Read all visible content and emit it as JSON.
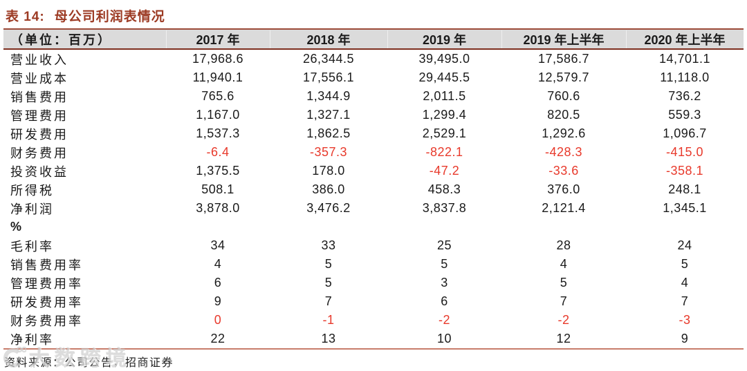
{
  "title": {
    "tag": "表 14:",
    "text": "母公司利润表情况"
  },
  "table": {
    "unit_header": "（单位：百万）",
    "columns": [
      "2017 年",
      "2018 年",
      "2019 年",
      "2019 年上半年",
      "2020 年上半年"
    ],
    "rows": [
      {
        "label": "营业收入",
        "values": [
          "17,968.6",
          "26,344.5",
          "39,495.0",
          "17,586.7",
          "14,701.1"
        ],
        "red": [
          false,
          false,
          false,
          false,
          false
        ]
      },
      {
        "label": "营业成本",
        "values": [
          "11,940.1",
          "17,556.1",
          "29,445.5",
          "12,579.7",
          "11,118.0"
        ],
        "red": [
          false,
          false,
          false,
          false,
          false
        ]
      },
      {
        "label": "销售费用",
        "values": [
          "765.6",
          "1,344.9",
          "2,011.5",
          "760.6",
          "736.2"
        ],
        "red": [
          false,
          false,
          false,
          false,
          false
        ]
      },
      {
        "label": "管理费用",
        "values": [
          "1,167.0",
          "1,327.1",
          "1,299.4",
          "820.5",
          "559.3"
        ],
        "red": [
          false,
          false,
          false,
          false,
          false
        ]
      },
      {
        "label": "研发费用",
        "values": [
          "1,537.3",
          "1,862.5",
          "2,529.1",
          "1,292.6",
          "1,096.7"
        ],
        "red": [
          false,
          false,
          false,
          false,
          false
        ]
      },
      {
        "label": "财务费用",
        "values": [
          "-6.4",
          "-357.3",
          "-822.1",
          "-428.3",
          "-415.0"
        ],
        "red": [
          true,
          true,
          true,
          true,
          true
        ]
      },
      {
        "label": "投资收益",
        "values": [
          "1,375.5",
          "178.0",
          "-47.2",
          "-33.6",
          "-358.1"
        ],
        "red": [
          false,
          false,
          true,
          true,
          true
        ]
      },
      {
        "label": "所得税",
        "values": [
          "508.1",
          "386.0",
          "458.3",
          "376.0",
          "248.1"
        ],
        "red": [
          false,
          false,
          false,
          false,
          false
        ]
      },
      {
        "label": "净利润",
        "values": [
          "3,878.0",
          "3,476.2",
          "3,837.8",
          "2,121.4",
          "1,345.1"
        ],
        "red": [
          false,
          false,
          false,
          false,
          false
        ]
      },
      {
        "label": "%",
        "values": [
          "",
          "",
          "",
          "",
          ""
        ],
        "red": [
          false,
          false,
          false,
          false,
          false
        ],
        "section": true
      },
      {
        "label": "毛利率",
        "values": [
          "34",
          "33",
          "25",
          "28",
          "24"
        ],
        "red": [
          false,
          false,
          false,
          false,
          false
        ]
      },
      {
        "label": "销售费用率",
        "values": [
          "4",
          "5",
          "5",
          "4",
          "5"
        ],
        "red": [
          false,
          false,
          false,
          false,
          false
        ]
      },
      {
        "label": "管理费用率",
        "values": [
          "6",
          "5",
          "3",
          "5",
          "4"
        ],
        "red": [
          false,
          false,
          false,
          false,
          false
        ]
      },
      {
        "label": "研发费用率",
        "values": [
          "9",
          "7",
          "6",
          "7",
          "7"
        ],
        "red": [
          false,
          false,
          false,
          false,
          false
        ]
      },
      {
        "label": "财务费用率",
        "values": [
          "0",
          "-1",
          "-2",
          "-2",
          "-3"
        ],
        "red": [
          true,
          true,
          true,
          true,
          true
        ]
      },
      {
        "label": "净利率",
        "values": [
          "22",
          "13",
          "10",
          "12",
          "9"
        ],
        "red": [
          false,
          false,
          false,
          false,
          false
        ]
      }
    ]
  },
  "footer": {
    "source": "资料来源：公司公告，招商证券"
  },
  "watermark": {
    "text": "大数跨境"
  },
  "colors": {
    "title": "#9C3A23",
    "header_bg": "#DBDBDB",
    "border_dark": "#9C4A38",
    "border_darker": "#7E2F1F",
    "border_light": "#C87C6B",
    "negative": "#E8392B"
  }
}
